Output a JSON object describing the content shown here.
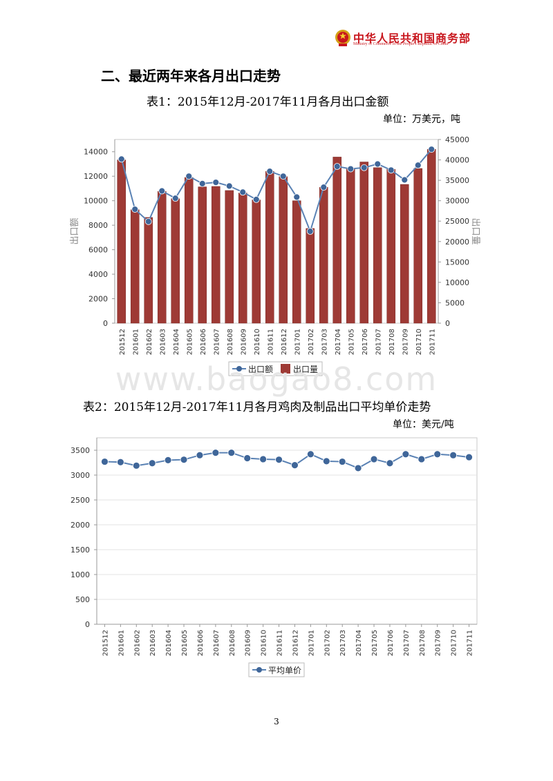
{
  "header": {
    "logo_cn": "中华人民共和国商务部",
    "logo_en": "Ministry of Commerce of the People's Republic of China"
  },
  "section_title": "二、最近两年来各月出口走势",
  "watermark": "www.baogao8.com",
  "page_number": "3",
  "colors": {
    "bar": "#9e3a35",
    "line": "#5a82b4",
    "marker": "#3f6699",
    "logo_red": "#c8161d"
  },
  "chart_data": [
    {
      "type": "bar",
      "title": "表1：2015年12月-2017年11月各月出口金额",
      "unit": "单位：万美元，吨",
      "categories": [
        "201512",
        "201601",
        "201602",
        "201603",
        "201604",
        "201605",
        "201606",
        "201607",
        "201608",
        "201609",
        "201610",
        "201611",
        "201612",
        "201701",
        "201702",
        "201703",
        "201704",
        "201705",
        "201706",
        "201707",
        "201708",
        "201709",
        "201710",
        "201711"
      ],
      "series": [
        {
          "name": "出口额",
          "kind": "line",
          "axis": "left",
          "values": [
            13400,
            9300,
            8300,
            10800,
            10200,
            12000,
            11400,
            11500,
            11200,
            10700,
            10100,
            12400,
            12000,
            10300,
            7500,
            11100,
            12800,
            12600,
            12700,
            13000,
            12500,
            11700,
            12900,
            14200
          ]
        },
        {
          "name": "出口量",
          "kind": "bar",
          "axis": "right",
          "values": [
            40000,
            27800,
            25900,
            32300,
            30500,
            35700,
            33400,
            33500,
            32500,
            31900,
            30200,
            37200,
            35900,
            30000,
            23200,
            33300,
            40700,
            37800,
            39500,
            38100,
            37700,
            34000,
            37900,
            42600
          ]
        }
      ],
      "ylabel_left": "出口额",
      "ylabel_right": "出口量",
      "ylim_left": [
        0,
        15000
      ],
      "yticks_left": [
        0,
        2000,
        4000,
        6000,
        8000,
        10000,
        12000,
        14000
      ],
      "ylim_right": [
        0,
        45000
      ],
      "yticks_right": [
        0,
        5000,
        10000,
        15000,
        20000,
        25000,
        30000,
        35000,
        40000,
        45000
      ],
      "legend": [
        "出口额",
        "出口量"
      ],
      "legend_position": "bottom"
    },
    {
      "type": "line",
      "title": "表2：2015年12月-2017年11月各月鸡肉及制品出口平均单价走势",
      "unit": "单位：美元/吨",
      "categories": [
        "201512",
        "201601",
        "201602",
        "201603",
        "201604",
        "201605",
        "201606",
        "201607",
        "201608",
        "201609",
        "201610",
        "201611",
        "201612",
        "201701",
        "201702",
        "201703",
        "201704",
        "201705",
        "201706",
        "201707",
        "201708",
        "201709",
        "201710",
        "201711"
      ],
      "series": [
        {
          "name": "平均单价",
          "values": [
            3270,
            3260,
            3190,
            3240,
            3300,
            3310,
            3400,
            3450,
            3450,
            3340,
            3320,
            3310,
            3200,
            3420,
            3280,
            3270,
            3140,
            3320,
            3240,
            3420,
            3320,
            3420,
            3400,
            3360
          ]
        }
      ],
      "ylim": [
        0,
        3750
      ],
      "yticks": [
        0,
        500,
        1000,
        1500,
        2000,
        2500,
        3000,
        3500
      ],
      "legend": [
        "平均单价"
      ],
      "legend_position": "bottom"
    }
  ]
}
